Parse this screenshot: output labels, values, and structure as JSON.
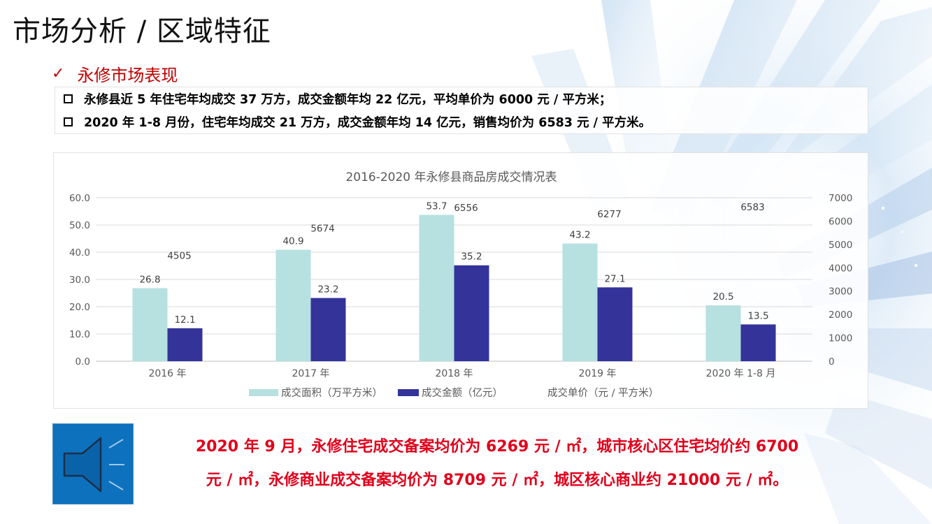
{
  "title": "市场分析 / 区域特征",
  "subheading": {
    "check": "✓",
    "text": "永修市场表现"
  },
  "bullets": [
    "永修县近 5 年住宅年均成交 37 万方，成交金额年均 22 亿元，平均单价为 6000 元 / 平方米；",
    "2020 年 1-8 月份，住宅年均成交 21 万方，成交金额年均 14 亿元，销售均价为 6583 元 / 平方米。"
  ],
  "note": {
    "line1": "2020 年 9 月，永修住宅成交备案均价为 6269 元 / ㎡，城市核心区住宅均价约 6700",
    "line2": "元 / ㎡，永修商业成交备案均价为 8709 元 / ㎡，城区核心商业约 21000 元 / ㎡。"
  },
  "icons": {
    "speaker": "speaker-icon"
  },
  "colors": {
    "accent_red": "#c00000",
    "note_red": "#e0001b",
    "area_bar": "#b7e0e1",
    "amount_bar": "#33339a",
    "speaker_bg": "#0d71bd"
  },
  "chart_data": {
    "type": "bar",
    "title": "2016-2020 年永修县商品房成交情况表",
    "categories": [
      "2016 年",
      "2017 年",
      "2018 年",
      "2019 年",
      "2020 年 1-8 月"
    ],
    "series": [
      {
        "name": "成交面积（万平方米）",
        "axis": "left",
        "values": [
          26.8,
          40.9,
          53.7,
          43.2,
          20.5
        ]
      },
      {
        "name": "成交金额（亿元）",
        "axis": "left",
        "values": [
          12.1,
          23.2,
          35.2,
          27.1,
          13.5
        ]
      },
      {
        "name": "成交单价（元 / 平方米）",
        "axis": "right",
        "style": "labels-only",
        "values": [
          4505,
          5674,
          6556,
          6277,
          6583
        ]
      }
    ],
    "y_left": {
      "min": 0,
      "max": 60,
      "step": 10,
      "ticks": [
        "0.0",
        "10.0",
        "20.0",
        "30.0",
        "40.0",
        "50.0",
        "60.0"
      ]
    },
    "y_right": {
      "min": 0,
      "max": 7000,
      "step": 1000,
      "ticks": [
        "0",
        "1000",
        "2000",
        "3000",
        "4000",
        "5000",
        "6000",
        "7000"
      ]
    },
    "grid": true,
    "legend": "bottom"
  }
}
